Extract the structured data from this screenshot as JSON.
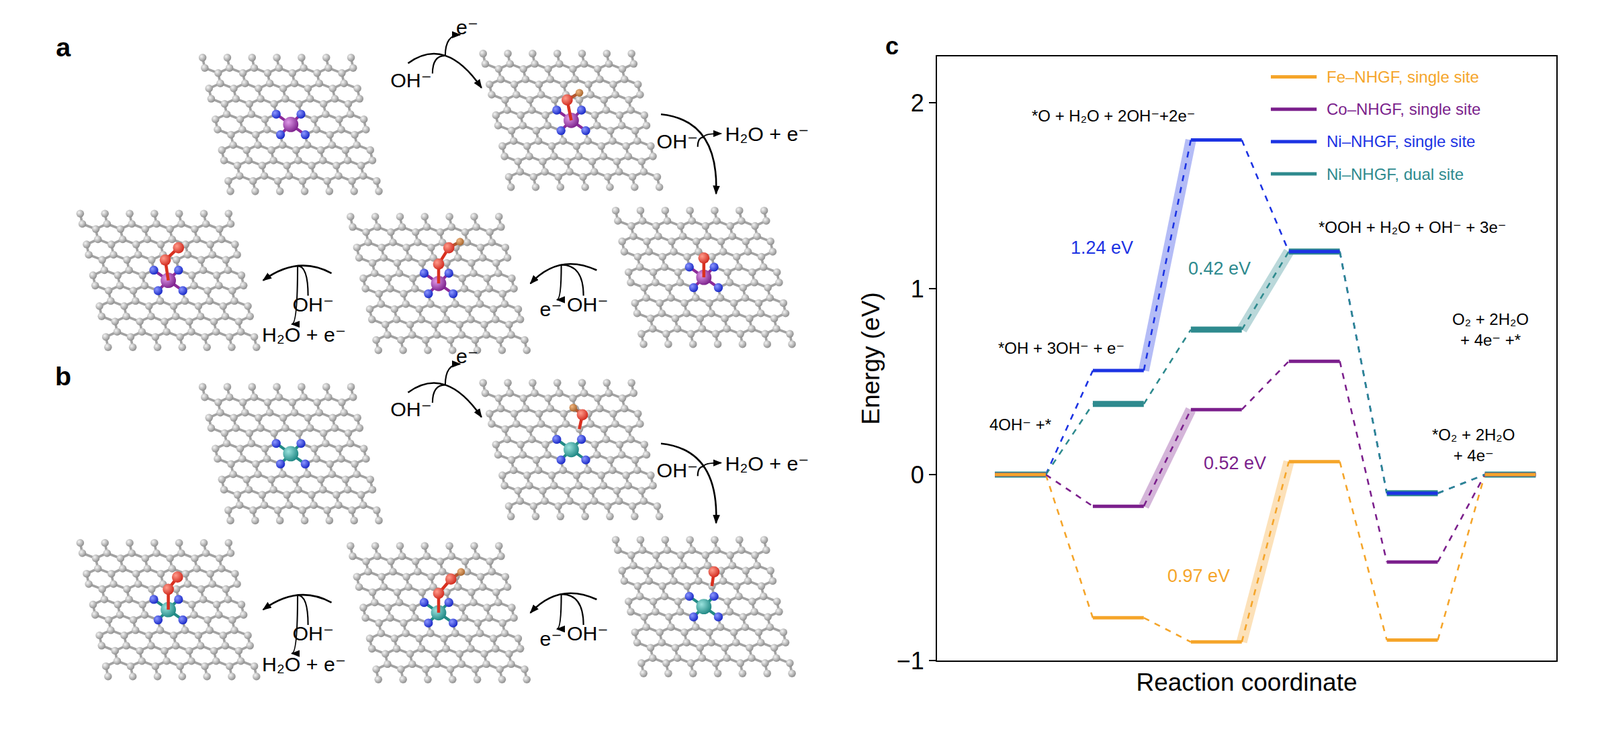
{
  "panels": [
    {
      "label": "a",
      "reactions": [
        {
          "in": "OH⁻",
          "out": "e⁻"
        },
        {
          "in": "OH⁻",
          "out": "H₂O + e⁻"
        },
        {
          "in": "OH⁻",
          "out": "e⁻"
        },
        {
          "in": "OH⁻",
          "out": "H₂O + e⁻"
        }
      ]
    },
    {
      "label": "b",
      "reactions": [
        {
          "in": "OH⁻",
          "out": "e⁻"
        },
        {
          "in": "OH⁻",
          "out": "H₂O + e⁻"
        },
        {
          "in": "OH⁻",
          "out": "e⁻"
        },
        {
          "in": "OH⁻",
          "out": "H₂O + e⁻"
        }
      ]
    }
  ],
  "chart_data": {
    "label": "c",
    "type": "line",
    "x_label": "Reaction coordinate",
    "y_label": "Energy (eV)",
    "categories": [
      "4OH⁻ +*",
      "*OH + 3OH⁻ + e⁻",
      "*O + H₂O + 2OH⁻+2e⁻",
      "*OOH + H₂O + OH⁻ + 3e⁻",
      "*O₂ + 2H₂O\n+ 4e⁻",
      "O₂ + 2H₂O\n+ 4e⁻ +*"
    ],
    "xlim": [
      -0.85,
      5.47
    ],
    "xticks": [],
    "ylim": [
      -1,
      2.25
    ],
    "yticks": [
      -1,
      0,
      1,
      2
    ],
    "grid": false,
    "tick_labels": "y",
    "legend": "upper right",
    "line_style": "dashed",
    "series": [
      {
        "name": "Fe–NHGF, single site",
        "color": "#f5a52a",
        "values": [
          0,
          -0.77,
          -0.9,
          0.07,
          -0.89,
          0
        ],
        "annotation": "0.97 eV"
      },
      {
        "name": "Co–NHGF, single site",
        "color": "#7b1f8c",
        "values": [
          0,
          -0.17,
          0.35,
          0.61,
          -0.47,
          0
        ],
        "annotation": "0.52 eV"
      },
      {
        "name": "Ni–NHGF, single site",
        "color": "#1c33e3",
        "values": [
          0,
          0.56,
          1.8,
          1.2,
          -0.1,
          0
        ],
        "annotation": "1.24 eV"
      },
      {
        "name": "Ni–NHGF, dual site",
        "color": "#2e8a8e",
        "values": [
          0,
          0.38,
          0.78,
          1.2,
          -0.1,
          0
        ],
        "annotation": "0.42 eV"
      }
    ]
  }
}
